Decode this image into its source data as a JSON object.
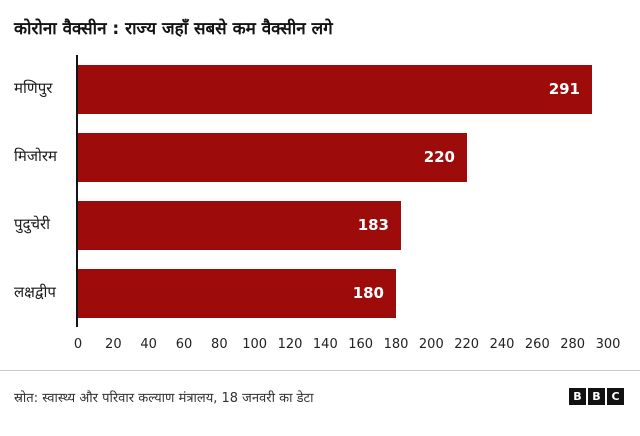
{
  "page": {
    "title": "कोरोना वैक्सीन : राज्य जहाँ सबसे कम वैक्सीन लगे",
    "source": "स्रोत: स्वास्थ्य और परिवार कल्याण मंत्रालय, 18 जनवरी का डेटा",
    "logo_letters": {
      "b1": "B",
      "b2": "B",
      "b3": "C"
    }
  },
  "chart_data": {
    "type": "bar",
    "orientation": "horizontal",
    "title": "कोरोना वैक्सीन : राज्य जहाँ सबसे कम वैक्सीन लगे",
    "categories": [
      "मणिपुर",
      "मिजोरम",
      "पुदुचेरी",
      "लक्षद्वीप"
    ],
    "values": [
      291,
      220,
      183,
      180
    ],
    "xlim": [
      0,
      300
    ],
    "xticks": [
      0,
      20,
      40,
      60,
      80,
      100,
      120,
      140,
      160,
      180,
      200,
      220,
      240,
      260,
      280,
      300
    ],
    "bar_color": "#9e0b0b",
    "value_label_color": "#ffffff",
    "axis_line_color": "#141414",
    "grid": false,
    "legend": false,
    "value_labels": "inside-end"
  }
}
